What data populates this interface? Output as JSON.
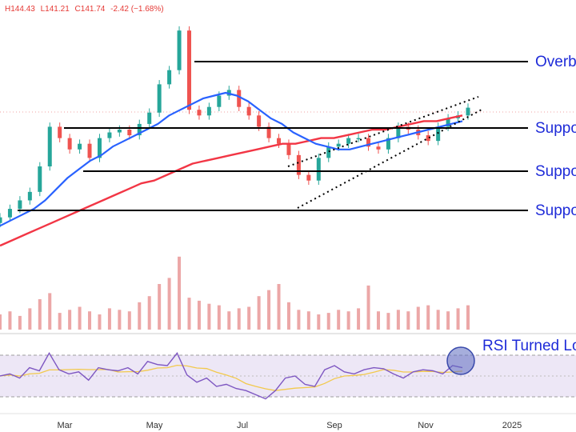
{
  "header": {
    "high_label": "H",
    "high": "144.43",
    "low_label": "L",
    "low": "141.21",
    "close_label": "C",
    "close": "141.74",
    "change": "-2.42 (−1.68%)"
  },
  "chart_data": {
    "type": "line",
    "x_ticks": [
      "Mar",
      "May",
      "Jul",
      "Sep",
      "Nov",
      "2025"
    ],
    "price_range_estimate": [
      95,
      160
    ],
    "series": [
      {
        "kind": "candlestick",
        "x": [
          "2024-01-02",
          "2024-01-09",
          "2024-01-16",
          "2024-01-23",
          "2024-01-30",
          "2024-02-06",
          "2024-02-13",
          "2024-02-20",
          "2024-02-27",
          "2024-03-05",
          "2024-03-12",
          "2024-03-19",
          "2024-03-26",
          "2024-04-02",
          "2024-04-09",
          "2024-04-16",
          "2024-04-23",
          "2024-04-30",
          "2024-05-07",
          "2024-05-14",
          "2024-05-21",
          "2024-05-28",
          "2024-06-04",
          "2024-06-11",
          "2024-06-18",
          "2024-06-25",
          "2024-07-02",
          "2024-07-09",
          "2024-07-16",
          "2024-07-23",
          "2024-07-30",
          "2024-08-06",
          "2024-08-13",
          "2024-08-20",
          "2024-08-27",
          "2024-09-03",
          "2024-09-10",
          "2024-09-17",
          "2024-09-24",
          "2024-10-01",
          "2024-10-08",
          "2024-10-15",
          "2024-10-22",
          "2024-10-29",
          "2024-11-05",
          "2024-11-12",
          "2024-11-19",
          "2024-11-26"
        ],
        "close": [
          103,
          106,
          109,
          112,
          121,
          135,
          131,
          127,
          129,
          124,
          131,
          133,
          134,
          132,
          136,
          140,
          150,
          155,
          169,
          141,
          139,
          142,
          146,
          148,
          142,
          139,
          135,
          131,
          129,
          125,
          118,
          116,
          124,
          128,
          129,
          131,
          131,
          128,
          127,
          131,
          135,
          134,
          132,
          130,
          135,
          138,
          139,
          141.74
        ]
      },
      {
        "name": "",
        "kind": "moving-average-50",
        "color": "#2962ff",
        "values": [
          100,
          102,
          104,
          106,
          109,
          113,
          117,
          120,
          123,
          125,
          128,
          130,
          132,
          134,
          136,
          139,
          141,
          143,
          145,
          146,
          147,
          146,
          144,
          141,
          138,
          136,
          133,
          131,
          129,
          128,
          127,
          127,
          128,
          129,
          130,
          131,
          132,
          133,
          134,
          135,
          136,
          137
        ]
      },
      {
        "name": "",
        "kind": "moving-average-200",
        "color": "#f23645",
        "values": [
          93,
          95,
          97,
          99,
          101,
          103,
          105,
          107,
          109,
          111,
          113,
          115,
          116,
          118,
          120,
          122,
          123,
          124,
          125,
          126,
          127,
          128,
          129,
          129,
          130,
          131,
          131,
          132,
          133,
          134,
          134,
          135,
          136,
          137,
          137,
          138,
          139
        ]
      },
      {
        "kind": "volume",
        "color": "#e58a8a",
        "values": [
          10,
          12,
          9,
          14,
          20,
          24,
          11,
          13,
          15,
          12,
          10,
          14,
          13,
          12,
          18,
          22,
          30,
          34,
          48,
          21,
          19,
          17,
          16,
          12,
          14,
          15,
          22,
          26,
          30,
          18,
          13,
          12,
          10,
          11,
          13,
          12,
          14,
          29,
          12,
          11,
          13,
          12,
          15,
          16,
          13,
          12,
          14,
          16
        ]
      },
      {
        "kind": "rsi",
        "color": "#7e57c2",
        "values": [
          50,
          52,
          48,
          58,
          55,
          72,
          56,
          52,
          54,
          46,
          58,
          56,
          55,
          58,
          52,
          64,
          61,
          60,
          72,
          51,
          44,
          48,
          40,
          42,
          38,
          36,
          32,
          28,
          36,
          48,
          50,
          42,
          40,
          56,
          60,
          54,
          52,
          56,
          58,
          57,
          52,
          48,
          54,
          56,
          55,
          52,
          60,
          58
        ]
      }
    ],
    "annotations": [
      "Overbought",
      "Support",
      "Support",
      "Support",
      "RSI Turned Lower"
    ]
  },
  "annotations": {
    "overbought": "Overbought",
    "support_1": "Support",
    "support_2": "Support",
    "support_3": "Support",
    "rsi": "RSI Turned Lower"
  },
  "colors": {
    "ma50": "#2962ff",
    "ma200": "#f23645",
    "rsi_line": "#7e57c2",
    "rsi_signal": "#f2c94c",
    "rsi_band": "#ede7f6",
    "candle_up": "#26a69a",
    "candle_down": "#ef5350",
    "annotation_text": "#1e2bd8"
  }
}
